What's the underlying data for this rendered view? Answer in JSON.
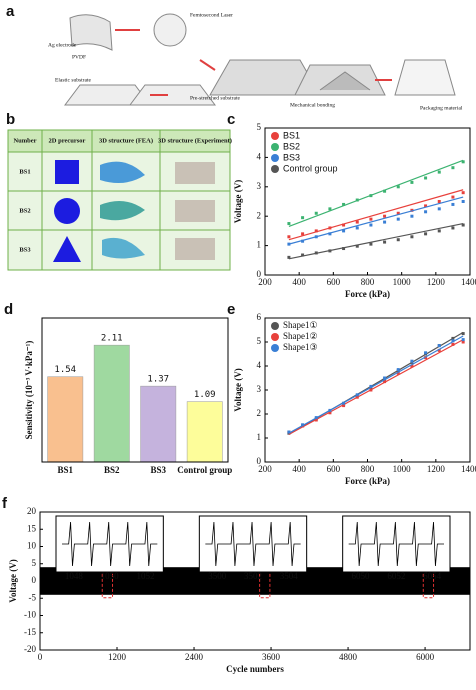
{
  "panel_a": {
    "label": "a",
    "texts": [
      "Ag electrode",
      "PVDF",
      "Femtosecond Laser",
      "Elastic substrate",
      "Pre-stretched substrate",
      "Mechanical bonding",
      "Packaging material"
    ]
  },
  "panel_b": {
    "label": "b",
    "header": [
      "Number",
      "2D precursor",
      "3D structure (FEA)",
      "3D structure (Experiment)"
    ],
    "rows": [
      "BS1",
      "BS2",
      "BS3"
    ]
  },
  "chart_data": [
    {
      "type": "line",
      "panel_label": "c",
      "x_label": "Force (kPa)",
      "y_label": "Voltage (V)",
      "x": [
        340,
        420,
        500,
        580,
        660,
        740,
        820,
        900,
        980,
        1060,
        1140,
        1220,
        1300,
        1360
      ],
      "series": [
        {
          "name": "BS1",
          "color": "#e8413c",
          "values": [
            1.3,
            1.4,
            1.5,
            1.6,
            1.7,
            1.8,
            1.9,
            2.0,
            2.1,
            2.2,
            2.35,
            2.5,
            2.65,
            2.8
          ],
          "fit": [
            1.2,
            2.9
          ]
        },
        {
          "name": "BS2",
          "color": "#3cb371",
          "values": [
            1.75,
            1.95,
            2.1,
            2.25,
            2.4,
            2.55,
            2.7,
            2.85,
            3.0,
            3.15,
            3.3,
            3.5,
            3.65,
            3.85
          ],
          "fit": [
            1.65,
            3.9
          ]
        },
        {
          "name": "BS3",
          "color": "#3a7fd5",
          "values": [
            1.05,
            1.15,
            1.3,
            1.4,
            1.5,
            1.6,
            1.7,
            1.8,
            1.9,
            2.0,
            2.15,
            2.25,
            2.4,
            2.5
          ],
          "fit": [
            1.05,
            2.65
          ]
        },
        {
          "name": "Control group",
          "color": "#555555",
          "values": [
            0.6,
            0.68,
            0.75,
            0.82,
            0.9,
            0.98,
            1.05,
            1.12,
            1.2,
            1.3,
            1.4,
            1.5,
            1.6,
            1.7
          ],
          "fit": [
            0.55,
            1.75
          ]
        }
      ],
      "xlim": [
        200,
        1400
      ],
      "xticks": [
        200,
        400,
        600,
        800,
        1000,
        1200,
        1400
      ],
      "ylim": [
        0,
        5
      ],
      "yticks": [
        0,
        1,
        2,
        3,
        4,
        5
      ]
    },
    {
      "type": "bar",
      "panel_label": "d",
      "y_label": "Sensitivity (10⁻³ V·kPa⁻¹)",
      "categories": [
        "BS1",
        "BS2",
        "BS3",
        "Control group"
      ],
      "values": [
        1.54,
        2.11,
        1.37,
        1.09
      ],
      "colors": [
        "#f9c08f",
        "#9fd9a0",
        "#c5b3dd",
        "#fdfd9a"
      ],
      "ylim": [
        0,
        2.6
      ]
    },
    {
      "type": "line",
      "panel_label": "e",
      "x_label": "Force (kPa)",
      "y_label": "Voltage (V)",
      "x": [
        340,
        420,
        500,
        580,
        660,
        740,
        820,
        900,
        980,
        1060,
        1140,
        1220,
        1300,
        1360
      ],
      "series": [
        {
          "name": "Shape1①",
          "color": "#555555",
          "values": [
            1.2,
            1.5,
            1.8,
            2.1,
            2.4,
            2.75,
            3.1,
            3.45,
            3.8,
            4.15,
            4.5,
            4.85,
            5.15,
            5.35
          ],
          "fit": [
            1.15,
            5.4
          ]
        },
        {
          "name": "Shape1②",
          "color": "#e8413c",
          "values": [
            1.25,
            1.5,
            1.75,
            2.05,
            2.35,
            2.7,
            3.0,
            3.35,
            3.7,
            4.0,
            4.35,
            4.65,
            4.9,
            5.0
          ],
          "fit": [
            1.15,
            5.1
          ]
        },
        {
          "name": "Shape1③",
          "color": "#3a7fd5",
          "values": [
            1.25,
            1.55,
            1.85,
            2.15,
            2.45,
            2.8,
            3.15,
            3.5,
            3.85,
            4.2,
            4.55,
            4.85,
            5.05,
            5.1
          ],
          "fit": [
            1.2,
            5.25
          ]
        }
      ],
      "xlim": [
        200,
        1400
      ],
      "xticks": [
        200,
        400,
        600,
        800,
        1000,
        1200,
        1400
      ],
      "ylim": [
        0,
        6
      ],
      "yticks": [
        0,
        1,
        2,
        3,
        4,
        5,
        6
      ]
    },
    {
      "type": "band",
      "panel_label": "f",
      "x_label": "Cycle numbers",
      "y_label": "Voltage (V)",
      "band": [
        -4,
        4
      ],
      "xrange": [
        0,
        6700
      ],
      "color": "#000000",
      "xlim": [
        0,
        6700
      ],
      "xticks": [
        0,
        1200,
        2400,
        3600,
        4800,
        6000
      ],
      "ylim": [
        -20,
        20
      ],
      "yticks": [
        -20,
        -15,
        -10,
        -5,
        0,
        5,
        10,
        15,
        20
      ],
      "insets": [
        {
          "ticks": [
            1048,
            1050,
            1052
          ]
        },
        {
          "ticks": [
            3500,
            3502,
            3504
          ]
        },
        {
          "ticks": [
            6050,
            6052,
            6054
          ]
        }
      ]
    }
  ]
}
